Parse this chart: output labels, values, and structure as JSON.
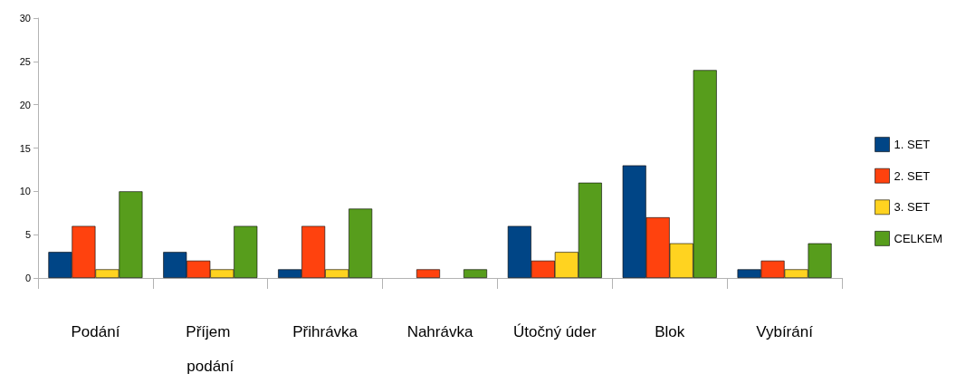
{
  "chart_data": {
    "type": "bar",
    "categories": [
      "Podání",
      "Příjem podání",
      "Přihrávka",
      "Nahrávka",
      "Útočný úder",
      "Blok",
      "Vybírání"
    ],
    "series": [
      {
        "name": "1. SET",
        "color": "#004586",
        "values": [
          3,
          3,
          1,
          0,
          6,
          13,
          1
        ]
      },
      {
        "name": "2. SET",
        "color": "#ff420e",
        "values": [
          6,
          2,
          6,
          1,
          2,
          7,
          2
        ]
      },
      {
        "name": "3. SET",
        "color": "#ffd320",
        "values": [
          1,
          1,
          1,
          0,
          3,
          4,
          1
        ]
      },
      {
        "name": "CELKEM",
        "color": "#579d1c",
        "values": [
          10,
          6,
          8,
          1,
          11,
          24,
          4
        ]
      }
    ],
    "ylim": [
      0,
      30
    ],
    "yticks": [
      0,
      5,
      10,
      15,
      20,
      25,
      30
    ],
    "grid": false,
    "legend": "right"
  }
}
